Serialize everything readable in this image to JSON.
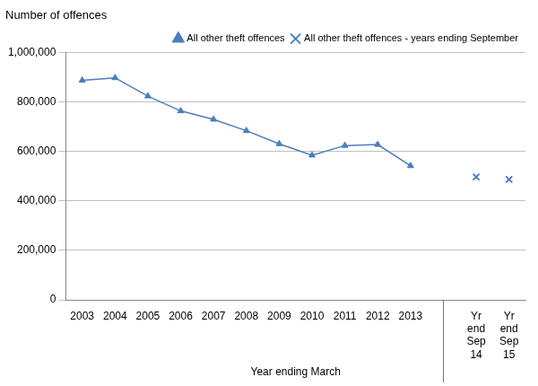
{
  "chart_data": {
    "type": "line",
    "y_label": "Number of offences",
    "x_label": "Year ending March",
    "categories": [
      "2003",
      "2004",
      "2005",
      "2006",
      "2007",
      "2008",
      "2009",
      "2010",
      "2011",
      "2012",
      "2013",
      null,
      "Yr end Sep 14",
      "Yr end Sep 15"
    ],
    "series": [
      {
        "name": "All other theft offences",
        "type": "line",
        "color": "#4a7ebb",
        "marker": "triangle",
        "line_style": "solid",
        "values": [
          888000,
          898000,
          824000,
          764000,
          730000,
          684000,
          631000,
          585000,
          624000,
          628000,
          542000,
          null,
          null,
          null
        ]
      },
      {
        "name": "All other theft offences - years ending September",
        "type": "scatter",
        "color": "#4a7ebb",
        "marker": "x",
        "line_style": "none",
        "values": [
          null,
          null,
          null,
          null,
          null,
          null,
          null,
          null,
          null,
          null,
          null,
          null,
          497000,
          487000
        ]
      }
    ],
    "ylim": [
      0,
      1000000
    ],
    "yticks": [
      0,
      {
        "value": 200000,
        "label": "200,000"
      },
      {
        "value": 400000,
        "label": "400,000"
      },
      {
        "value": 600000,
        "label": "600,000"
      },
      {
        "value": 800000,
        "label": "800,000"
      },
      {
        "value": 1000000,
        "label": "1,000,000"
      }
    ],
    "grid": "y",
    "legend": "top right"
  }
}
